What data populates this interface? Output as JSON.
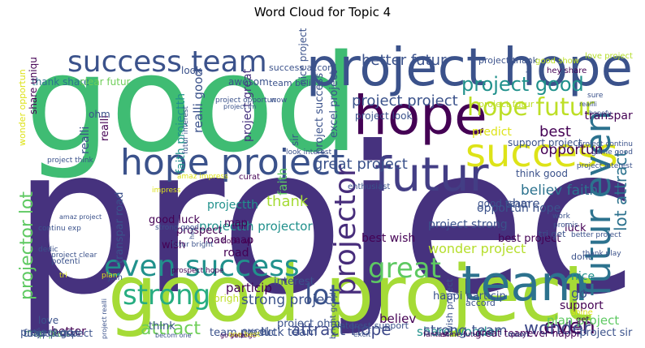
{
  "chart_data": {
    "type": "wordcloud",
    "title": "Word Cloud for Topic 4",
    "background": "#ffffff",
    "colormap": "viridis",
    "words": [
      {
        "text": "project",
        "weight": 1.0,
        "color": "#46327e"
      },
      {
        "text": "good",
        "weight": 0.95,
        "color": "#3fbc73"
      },
      {
        "text": "good project",
        "weight": 0.62,
        "color": "#a5db36"
      },
      {
        "text": "project hope",
        "weight": 0.38,
        "color": "#3b528b"
      },
      {
        "text": "hope",
        "weight": 0.36,
        "color": "#440154"
      },
      {
        "text": "team",
        "weight": 0.34,
        "color": "#2c728e"
      },
      {
        "text": "futur",
        "weight": 0.33,
        "color": "#433e85"
      },
      {
        "text": "success",
        "weight": 0.28,
        "color": "#dde318"
      },
      {
        "text": "hope project",
        "weight": 0.24,
        "color": "#3b528b"
      },
      {
        "text": "futur even",
        "weight": 0.22,
        "color": "#2c728e"
      },
      {
        "text": "success team",
        "weight": 0.21,
        "color": "#3b528b"
      },
      {
        "text": "even success",
        "weight": 0.2,
        "color": "#21918c"
      },
      {
        "text": "strong",
        "weight": 0.18,
        "color": "#27ad81"
      },
      {
        "text": "great",
        "weight": 0.18,
        "color": "#5ec962"
      },
      {
        "text": "lot",
        "weight": 0.17,
        "color": "#3b528b"
      },
      {
        "text": "projector",
        "weight": 0.17,
        "color": "#472d7b"
      },
      {
        "text": "hope futur",
        "weight": 0.16,
        "color": "#bddf26"
      },
      {
        "text": "project good",
        "weight": 0.13,
        "color": "#21918c"
      },
      {
        "text": "even",
        "weight": 0.13,
        "color": "#440154"
      },
      {
        "text": "wonder",
        "weight": 0.11,
        "color": "#3e4989"
      },
      {
        "text": "attract",
        "weight": 0.11,
        "color": "#6ece58"
      },
      {
        "text": "attract hope",
        "weight": 0.1,
        "color": "#3e4989"
      },
      {
        "text": "lot attract",
        "weight": 0.1,
        "color": "#2c728e"
      },
      {
        "text": "projector lot",
        "weight": 0.1,
        "color": "#5ec962"
      },
      {
        "text": "project project",
        "weight": 0.09,
        "color": "#3b528b"
      },
      {
        "text": "better futur",
        "weight": 0.09,
        "color": "#3b528b"
      },
      {
        "text": "best",
        "weight": 0.09,
        "color": "#440154"
      },
      {
        "text": "opportun",
        "weight": 0.08,
        "color": "#440154"
      },
      {
        "text": "great project",
        "weight": 0.08,
        "color": "#3b528b"
      },
      {
        "text": "believ faith",
        "weight": 0.08,
        "color": "#2c728e"
      },
      {
        "text": "thank",
        "weight": 0.08,
        "color": "#a5db36"
      },
      {
        "text": "faith",
        "weight": 0.08,
        "color": "#5ec962"
      },
      {
        "text": "share",
        "weight": 0.07,
        "color": "#3b528b"
      },
      {
        "text": "share wonder",
        "weight": 0.07,
        "color": "#21918c"
      },
      {
        "text": "wonder project",
        "weight": 0.07,
        "color": "#b5de2b"
      },
      {
        "text": "strong project",
        "weight": 0.07,
        "color": "#3b528b"
      },
      {
        "text": "strong team",
        "weight": 0.07,
        "color": "#3b528b"
      },
      {
        "text": "plan project",
        "weight": 0.07,
        "color": "#5ec962"
      },
      {
        "text": "particip",
        "weight": 0.07,
        "color": "#440154"
      },
      {
        "text": "believ",
        "weight": 0.07,
        "color": "#440154"
      },
      {
        "text": "realli",
        "weight": 0.07,
        "color": "#440154"
      },
      {
        "text": "realli good",
        "weight": 0.07,
        "color": "#3b528b"
      },
      {
        "text": "faith projectth",
        "weight": 0.06,
        "color": "#21918c"
      },
      {
        "text": "project success",
        "weight": 0.06,
        "color": "#3b528b"
      },
      {
        "text": "project great",
        "weight": 0.06,
        "color": "#46327e"
      },
      {
        "text": "transpar",
        "weight": 0.06,
        "color": "#440154"
      },
      {
        "text": "projectth",
        "weight": 0.06,
        "color": "#21918c"
      },
      {
        "text": "projectth projector",
        "weight": 0.06,
        "color": "#21918c"
      },
      {
        "text": "thank share",
        "weight": 0.06,
        "color": "#2c728e"
      },
      {
        "text": "clear futur",
        "weight": 0.06,
        "color": "#6ece58"
      },
      {
        "text": "team believ",
        "weight": 0.06,
        "color": "#3b528b"
      },
      {
        "text": "map",
        "weight": 0.06,
        "color": "#440154"
      },
      {
        "text": "road",
        "weight": 0.06,
        "color": "#440154"
      },
      {
        "text": "luck",
        "weight": 0.06,
        "color": "#440154"
      },
      {
        "text": "go",
        "weight": 0.06,
        "color": "#3b528b"
      },
      {
        "text": "nice",
        "weight": 0.06,
        "color": "#21918c"
      },
      {
        "text": "support",
        "weight": 0.05,
        "color": "#440154"
      },
      {
        "text": "better",
        "weight": 0.06,
        "color": "#440154"
      },
      {
        "text": "excel",
        "weight": 0.05,
        "color": "#3b528b"
      },
      {
        "text": "excel project",
        "weight": 0.05,
        "color": "#3b528b"
      },
      {
        "text": "look",
        "weight": 0.05,
        "color": "#3b528b"
      },
      {
        "text": "awesom",
        "weight": 0.05,
        "color": "#3b528b"
      },
      {
        "text": "prospect",
        "weight": 0.05,
        "color": "#440154"
      },
      {
        "text": "wish",
        "weight": 0.05,
        "color": "#440154"
      },
      {
        "text": "good luck",
        "weight": 0.05,
        "color": "#440154"
      },
      {
        "text": "road map",
        "weight": 0.05,
        "color": "#440154"
      },
      {
        "text": "transpar road",
        "weight": 0.05,
        "color": "#3b528b"
      },
      {
        "text": "project ohm",
        "weight": 0.05,
        "color": "#3b528b"
      },
      {
        "text": "interest",
        "weight": 0.05,
        "color": "#3b528b"
      },
      {
        "text": "think",
        "weight": 0.05,
        "color": "#3b528b"
      },
      {
        "text": "luck team",
        "weight": 0.05,
        "color": "#3b528b"
      },
      {
        "text": "team predict",
        "weight": 0.05,
        "color": "#3b528b"
      },
      {
        "text": "best project",
        "weight": 0.05,
        "color": "#440154"
      },
      {
        "text": "best wish",
        "weight": 0.05,
        "color": "#440154"
      },
      {
        "text": "happi particip",
        "weight": 0.05,
        "color": "#3b528b"
      },
      {
        "text": "realli",
        "weight": 0.05,
        "color": "#3b528b"
      },
      {
        "text": "map plan",
        "weight": 0.05,
        "color": "#5ec962"
      },
      {
        "text": "love",
        "weight": 0.05,
        "color": "#3b528b"
      },
      {
        "text": "project go",
        "weight": 0.05,
        "color": "#3b528b"
      },
      {
        "text": "uniqu curat",
        "weight": 0.04,
        "color": "#3b528b"
      },
      {
        "text": "futur prospect",
        "weight": 0.04,
        "color": "#3b528b"
      },
      {
        "text": "interest support",
        "weight": 0.04,
        "color": "#3b528b"
      },
      {
        "text": "predict",
        "weight": 0.04,
        "color": "#dde318"
      },
      {
        "text": "project strong",
        "weight": 0.05,
        "color": "#3b528b"
      },
      {
        "text": "opportun hope",
        "weight": 0.04,
        "color": "#3b528b"
      },
      {
        "text": "good team",
        "weight": 0.04,
        "color": "#3b528b"
      },
      {
        "text": "ever happi",
        "weight": 0.04,
        "color": "#440154"
      },
      {
        "text": "support project",
        "weight": 0.04,
        "color": "#3b528b"
      },
      {
        "text": "think good",
        "weight": 0.04,
        "color": "#3b528b"
      },
      {
        "text": "great team",
        "weight": 0.04,
        "color": "#440154"
      },
      {
        "text": "wish project",
        "weight": 0.04,
        "color": "#3b528b"
      },
      {
        "text": "project sir",
        "weight": 0.04,
        "color": "#3b528b"
      },
      {
        "text": "project thank",
        "weight": 0.04,
        "color": "#3b528b"
      },
      {
        "text": "good show",
        "weight": 0.03,
        "color": "#bddf26"
      },
      {
        "text": "love project",
        "weight": 0.04,
        "color": "#b5de2b"
      },
      {
        "text": "project futur",
        "weight": 0.04,
        "color": "#bddf26"
      },
      {
        "text": "hey share",
        "weight": 0.03,
        "color": "#440154"
      },
      {
        "text": "project look",
        "weight": 0.04,
        "color": "#3b528b"
      },
      {
        "text": "share uniqu",
        "weight": 0.04,
        "color": "#440154"
      },
      {
        "text": "wonder opportun",
        "weight": 0.04,
        "color": "#dde318"
      },
      {
        "text": "ohm",
        "weight": 0.04,
        "color": "#3b528b"
      },
      {
        "text": "success accord",
        "weight": 0.04,
        "color": "#3b528b"
      },
      {
        "text": "nice project",
        "weight": 0.04,
        "color": "#3b528b"
      },
      {
        "text": "sir",
        "weight": 0.04,
        "color": "#3b528b"
      },
      {
        "text": "curat",
        "weight": 0.04,
        "color": "#440154"
      },
      {
        "text": "bright",
        "weight": 0.04,
        "color": "#bddf26"
      },
      {
        "text": "accord",
        "weight": 0.03,
        "color": "#3b528b"
      },
      {
        "text": "futur interest",
        "weight": 0.03,
        "color": "#3b528b"
      },
      {
        "text": "look interest",
        "weight": 0.03,
        "color": "#3b528b"
      },
      {
        "text": "enthusiast",
        "weight": 0.03,
        "color": "#3b528b"
      },
      {
        "text": "prospect hope",
        "weight": 0.03,
        "color": "#440154"
      },
      {
        "text": "strong good",
        "weight": 0.03,
        "color": "#3b528b"
      },
      {
        "text": "futur bright",
        "weight": 0.03,
        "color": "#3b528b"
      },
      {
        "text": "hope wil",
        "weight": 0.03,
        "color": "#440154"
      },
      {
        "text": "good go",
        "weight": 0.03,
        "color": "#440154"
      },
      {
        "text": "go better",
        "weight": 0.03,
        "color": "#440154"
      },
      {
        "text": "bright good",
        "weight": 0.03,
        "color": "#3b528b"
      },
      {
        "text": "project clear",
        "weight": 0.03,
        "color": "#3b528b"
      },
      {
        "text": "tri get",
        "weight": 0.03,
        "color": "#3b528b"
      },
      {
        "text": "get",
        "weight": 0.03,
        "color": "#440154"
      },
      {
        "text": "shine",
        "weight": 0.03,
        "color": "#dde318"
      },
      {
        "text": "shine futur",
        "weight": 0.03,
        "color": "#440154"
      },
      {
        "text": "fantast",
        "weight": 0.03,
        "color": "#440154"
      },
      {
        "text": "project interest",
        "weight": 0.03,
        "color": "#3b528b"
      },
      {
        "text": "project continu",
        "weight": 0.03,
        "color": "#3b528b"
      },
      {
        "text": "game good",
        "weight": 0.03,
        "color": "#3b528b"
      },
      {
        "text": "work",
        "weight": 0.03,
        "color": "#3b528b"
      },
      {
        "text": "promis",
        "weight": 0.03,
        "color": "#3b528b"
      },
      {
        "text": "better project",
        "weight": 0.03,
        "color": "#3b528b"
      },
      {
        "text": "thank play",
        "weight": 0.03,
        "color": "#3b528b"
      },
      {
        "text": "sure",
        "weight": 0.03,
        "color": "#3b528b"
      },
      {
        "text": "play",
        "weight": 0.03,
        "color": "#440154"
      },
      {
        "text": "moon",
        "weight": 0.03,
        "color": "#3b528b"
      },
      {
        "text": "excit",
        "weight": 0.03,
        "color": "#3b528b"
      },
      {
        "text": "wow",
        "weight": 0.03,
        "color": "#3b528b"
      },
      {
        "text": "project think",
        "weight": 0.03,
        "color": "#3b528b"
      },
      {
        "text": "dont",
        "weight": 0.03,
        "color": "#3b528b"
      },
      {
        "text": "amaz impress",
        "weight": 0.03,
        "color": "#dde318"
      },
      {
        "text": "impress",
        "weight": 0.04,
        "color": "#dde318"
      },
      {
        "text": "continu exp",
        "weight": 0.03,
        "color": "#3b528b"
      },
      {
        "text": "dedic",
        "weight": 0.03,
        "color": "#3b528b"
      },
      {
        "text": "potenti",
        "weight": 0.03,
        "color": "#3b528b"
      },
      {
        "text": "join",
        "weight": 0.03,
        "color": "#3b528b"
      },
      {
        "text": "plan",
        "weight": 0.03,
        "color": "#dde318"
      },
      {
        "text": "tri",
        "weight": 0.03,
        "color": "#dde318"
      },
      {
        "text": "one best",
        "weight": 0.03,
        "color": "#dde318"
      },
      {
        "text": "becom one",
        "weight": 0.03,
        "color": "#3b528b"
      },
      {
        "text": "project realli",
        "weight": 0.03,
        "color": "#3b528b"
      },
      {
        "text": "reallli",
        "weight": 0.02,
        "color": "#3b528b"
      },
      {
        "text": "trust",
        "weight": 0.02,
        "color": "#3b528b"
      },
      {
        "text": "amaz project",
        "weight": 0.02,
        "color": "#3b528b"
      },
      {
        "text": "hopefu",
        "weight": 0.02,
        "color": "#3b528b"
      },
      {
        "text": "project opportun",
        "weight": 0.02,
        "color": "#3b528b"
      },
      {
        "text": "project im",
        "weight": 0.02,
        "color": "#3b528b"
      },
      {
        "text": "hey",
        "weight": 0.02,
        "color": "#3b528b"
      },
      {
        "text": "get hope",
        "weight": 0.03,
        "color": "#3b528b"
      },
      {
        "text": "good shine",
        "weight": 0.02,
        "color": "#3b528b"
      },
      {
        "text": "airdrop",
        "weight": 0.02,
        "color": "#3b528b"
      }
    ]
  }
}
